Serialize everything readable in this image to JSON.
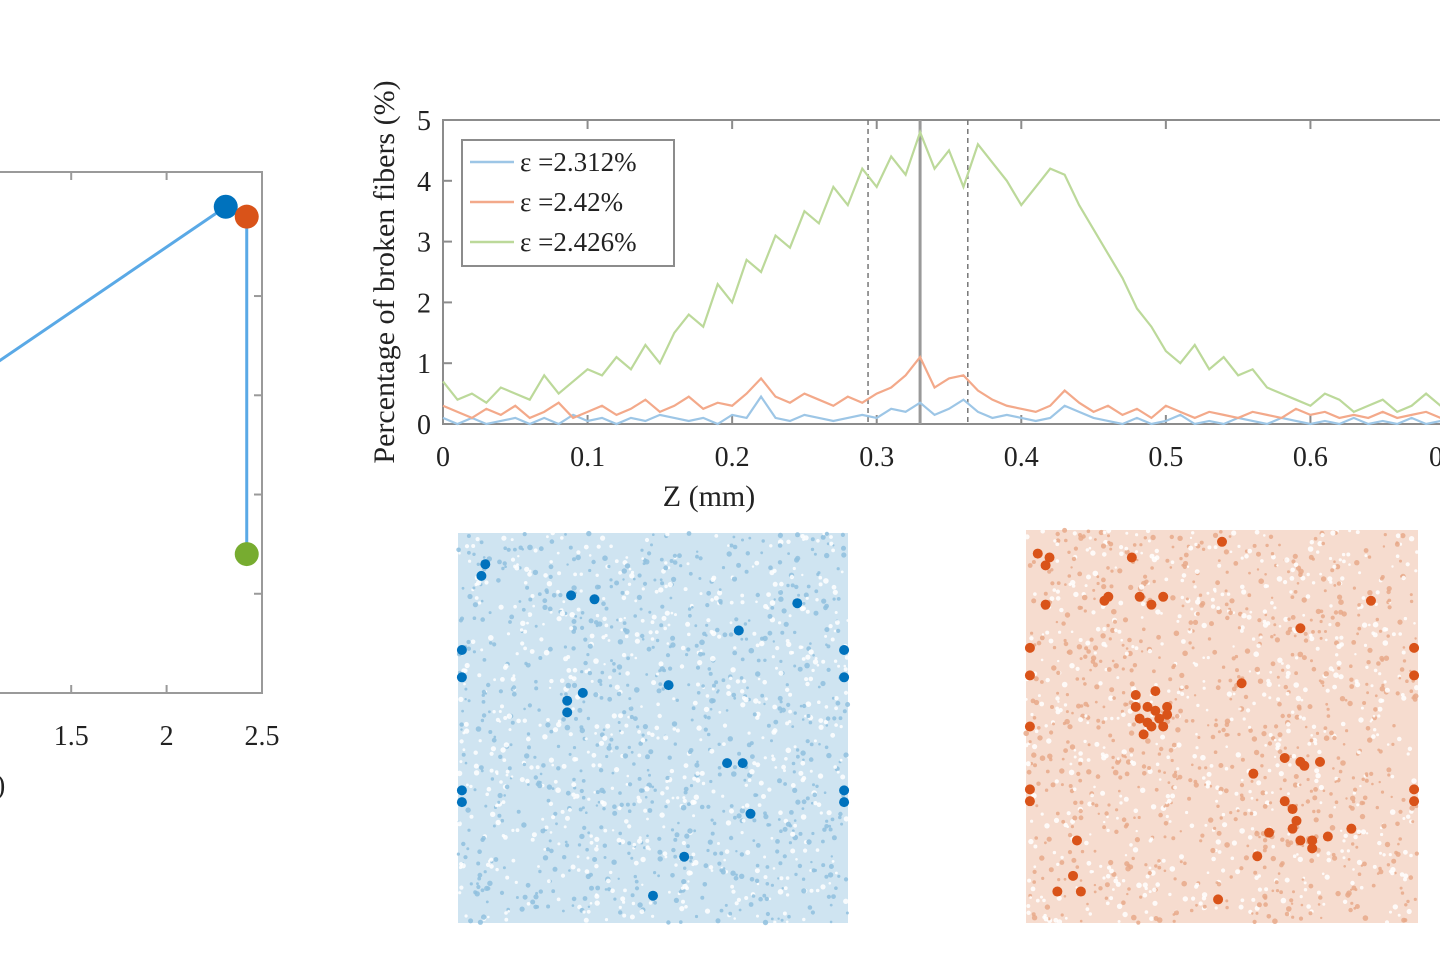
{
  "chart_data": [
    {
      "type": "line",
      "xlim": [
        0,
        2.5
      ],
      "x_ticks": [
        "1.5",
        "2",
        "2.5"
      ],
      "xlabel_fragment": ")",
      "series": [
        {
          "x": [
            1.05,
            2.31,
            2.42,
            2.42
          ],
          "y": [
            0.65,
            0.98,
            0.96,
            0.28
          ],
          "color": "#5aa9e6"
        }
      ],
      "markers": [
        {
          "x": 2.31,
          "y": 0.98,
          "color": "#0072BD"
        },
        {
          "x": 2.42,
          "y": 0.96,
          "color": "#D95319"
        },
        {
          "x": 2.42,
          "y": 0.28,
          "color": "#77AC30"
        }
      ],
      "ylim": [
        0,
        1.05
      ]
    },
    {
      "type": "line",
      "xlabel": "Z (mm)",
      "ylabel": "Percentage of broken fibers (%)",
      "xlim": [
        0,
        0.7
      ],
      "ylim": [
        0,
        5
      ],
      "x_ticks": [
        "0",
        "0.1",
        "0.2",
        "0.3",
        "0.4",
        "0.5",
        "0.6",
        "0"
      ],
      "y_ticks": [
        "0",
        "1",
        "2",
        "3",
        "4",
        "5"
      ],
      "legend_position": "top-left",
      "vlines": [
        {
          "x": 0.294,
          "style": "dashed"
        },
        {
          "x": 0.33,
          "style": "solid"
        },
        {
          "x": 0.363,
          "style": "dashed"
        }
      ],
      "series": [
        {
          "name": "ε =2.312%",
          "color": "#9dc6e6",
          "x": [
            0.0,
            0.01,
            0.02,
            0.03,
            0.04,
            0.05,
            0.06,
            0.07,
            0.08,
            0.09,
            0.1,
            0.11,
            0.12,
            0.13,
            0.14,
            0.15,
            0.16,
            0.17,
            0.18,
            0.19,
            0.2,
            0.21,
            0.22,
            0.23,
            0.24,
            0.25,
            0.26,
            0.27,
            0.28,
            0.29,
            0.3,
            0.31,
            0.32,
            0.33,
            0.34,
            0.35,
            0.36,
            0.37,
            0.38,
            0.39,
            0.4,
            0.41,
            0.42,
            0.43,
            0.44,
            0.45,
            0.46,
            0.47,
            0.48,
            0.49,
            0.5,
            0.51,
            0.52,
            0.53,
            0.54,
            0.55,
            0.56,
            0.57,
            0.58,
            0.59,
            0.6,
            0.61,
            0.62,
            0.63,
            0.64,
            0.65,
            0.66,
            0.67,
            0.68,
            0.69,
            0.7
          ],
          "y": [
            0.1,
            0.0,
            0.1,
            0.0,
            0.05,
            0.1,
            0.0,
            0.1,
            0.0,
            0.15,
            0.05,
            0.1,
            0.0,
            0.1,
            0.05,
            0.15,
            0.1,
            0.05,
            0.1,
            0.0,
            0.15,
            0.1,
            0.45,
            0.1,
            0.05,
            0.15,
            0.1,
            0.05,
            0.1,
            0.15,
            0.1,
            0.25,
            0.2,
            0.35,
            0.15,
            0.25,
            0.4,
            0.2,
            0.1,
            0.15,
            0.1,
            0.05,
            0.1,
            0.3,
            0.2,
            0.1,
            0.05,
            0.0,
            0.1,
            0.0,
            0.05,
            0.15,
            0.0,
            0.05,
            0.0,
            0.1,
            0.05,
            0.0,
            0.1,
            0.05,
            0.0,
            0.05,
            0.0,
            0.1,
            0.0,
            0.05,
            0.0,
            0.1,
            0.0,
            0.05,
            0.1
          ]
        },
        {
          "name": "ε =2.42%",
          "color": "#f3a98a",
          "x": [
            0.0,
            0.01,
            0.02,
            0.03,
            0.04,
            0.05,
            0.06,
            0.07,
            0.08,
            0.09,
            0.1,
            0.11,
            0.12,
            0.13,
            0.14,
            0.15,
            0.16,
            0.17,
            0.18,
            0.19,
            0.2,
            0.21,
            0.22,
            0.23,
            0.24,
            0.25,
            0.26,
            0.27,
            0.28,
            0.29,
            0.3,
            0.31,
            0.32,
            0.33,
            0.34,
            0.35,
            0.36,
            0.37,
            0.38,
            0.39,
            0.4,
            0.41,
            0.42,
            0.43,
            0.44,
            0.45,
            0.46,
            0.47,
            0.48,
            0.49,
            0.5,
            0.51,
            0.52,
            0.53,
            0.54,
            0.55,
            0.56,
            0.57,
            0.58,
            0.59,
            0.6,
            0.61,
            0.62,
            0.63,
            0.64,
            0.65,
            0.66,
            0.67,
            0.68,
            0.69,
            0.7
          ],
          "y": [
            0.3,
            0.2,
            0.1,
            0.25,
            0.15,
            0.3,
            0.1,
            0.2,
            0.35,
            0.1,
            0.2,
            0.3,
            0.15,
            0.25,
            0.4,
            0.2,
            0.3,
            0.45,
            0.25,
            0.35,
            0.3,
            0.5,
            0.75,
            0.45,
            0.35,
            0.5,
            0.4,
            0.3,
            0.45,
            0.35,
            0.5,
            0.6,
            0.8,
            1.1,
            0.6,
            0.75,
            0.8,
            0.55,
            0.4,
            0.3,
            0.25,
            0.2,
            0.3,
            0.55,
            0.35,
            0.2,
            0.3,
            0.15,
            0.25,
            0.1,
            0.3,
            0.2,
            0.1,
            0.2,
            0.15,
            0.1,
            0.2,
            0.15,
            0.1,
            0.25,
            0.15,
            0.2,
            0.1,
            0.15,
            0.1,
            0.2,
            0.1,
            0.15,
            0.2,
            0.1,
            0.3
          ]
        },
        {
          "name": "ε =2.426%",
          "color": "#bcd99a",
          "x": [
            0.0,
            0.01,
            0.02,
            0.03,
            0.04,
            0.05,
            0.06,
            0.07,
            0.08,
            0.09,
            0.1,
            0.11,
            0.12,
            0.13,
            0.14,
            0.15,
            0.16,
            0.17,
            0.18,
            0.19,
            0.2,
            0.21,
            0.22,
            0.23,
            0.24,
            0.25,
            0.26,
            0.27,
            0.28,
            0.29,
            0.3,
            0.31,
            0.32,
            0.33,
            0.34,
            0.35,
            0.36,
            0.37,
            0.38,
            0.39,
            0.4,
            0.41,
            0.42,
            0.43,
            0.44,
            0.45,
            0.46,
            0.47,
            0.48,
            0.49,
            0.5,
            0.51,
            0.52,
            0.53,
            0.54,
            0.55,
            0.56,
            0.57,
            0.58,
            0.59,
            0.6,
            0.61,
            0.62,
            0.63,
            0.64,
            0.65,
            0.66,
            0.67,
            0.68,
            0.69,
            0.7
          ],
          "y": [
            0.7,
            0.4,
            0.5,
            0.35,
            0.6,
            0.5,
            0.4,
            0.8,
            0.5,
            0.7,
            0.9,
            0.8,
            1.1,
            0.9,
            1.3,
            1.0,
            1.5,
            1.8,
            1.6,
            2.3,
            2.0,
            2.7,
            2.5,
            3.1,
            2.9,
            3.5,
            3.3,
            3.9,
            3.6,
            4.2,
            3.9,
            4.4,
            4.1,
            4.8,
            4.2,
            4.5,
            3.9,
            4.6,
            4.3,
            4.0,
            3.6,
            3.9,
            4.2,
            4.1,
            3.6,
            3.2,
            2.8,
            2.4,
            1.9,
            1.6,
            1.2,
            1.0,
            1.3,
            0.9,
            1.1,
            0.8,
            0.9,
            0.6,
            0.5,
            0.4,
            0.3,
            0.5,
            0.4,
            0.2,
            0.3,
            0.4,
            0.2,
            0.3,
            0.5,
            0.3,
            0.4
          ]
        }
      ]
    },
    {
      "type": "scatter",
      "panel": "cross-section",
      "color": "#0072BD",
      "xlim": [
        0,
        1
      ],
      "ylim": [
        0,
        1
      ],
      "points": [
        [
          0.07,
          0.08
        ],
        [
          0.06,
          0.11
        ],
        [
          0.29,
          0.16
        ],
        [
          0.35,
          0.17
        ],
        [
          0.87,
          0.18
        ],
        [
          0.72,
          0.25
        ],
        [
          0.01,
          0.3
        ],
        [
          0.99,
          0.3
        ],
        [
          0.01,
          0.37
        ],
        [
          0.99,
          0.37
        ],
        [
          0.54,
          0.39
        ],
        [
          0.32,
          0.41
        ],
        [
          0.28,
          0.43
        ],
        [
          0.28,
          0.46
        ],
        [
          0.69,
          0.59
        ],
        [
          0.73,
          0.59
        ],
        [
          0.01,
          0.66
        ],
        [
          0.99,
          0.66
        ],
        [
          0.01,
          0.69
        ],
        [
          0.99,
          0.69
        ],
        [
          0.75,
          0.72
        ],
        [
          0.58,
          0.83
        ],
        [
          0.5,
          0.93
        ]
      ]
    },
    {
      "type": "scatter",
      "panel": "cross-section",
      "color": "#D95319",
      "xlim": [
        0,
        1
      ],
      "ylim": [
        0,
        1
      ],
      "points": [
        [
          0.03,
          0.06
        ],
        [
          0.06,
          0.07
        ],
        [
          0.05,
          0.09
        ],
        [
          0.27,
          0.07
        ],
        [
          0.5,
          0.03
        ],
        [
          0.05,
          0.19
        ],
        [
          0.21,
          0.17
        ],
        [
          0.2,
          0.18
        ],
        [
          0.29,
          0.17
        ],
        [
          0.32,
          0.19
        ],
        [
          0.35,
          0.17
        ],
        [
          0.88,
          0.18
        ],
        [
          0.7,
          0.25
        ],
        [
          0.01,
          0.3
        ],
        [
          0.99,
          0.3
        ],
        [
          0.01,
          0.37
        ],
        [
          0.99,
          0.37
        ],
        [
          0.55,
          0.39
        ],
        [
          0.28,
          0.42
        ],
        [
          0.33,
          0.41
        ],
        [
          0.28,
          0.45
        ],
        [
          0.31,
          0.45
        ],
        [
          0.33,
          0.46
        ],
        [
          0.36,
          0.45
        ],
        [
          0.29,
          0.48
        ],
        [
          0.31,
          0.49
        ],
        [
          0.34,
          0.48
        ],
        [
          0.36,
          0.47
        ],
        [
          0.32,
          0.5
        ],
        [
          0.35,
          0.5
        ],
        [
          0.3,
          0.52
        ],
        [
          0.01,
          0.5
        ],
        [
          0.71,
          0.6
        ],
        [
          0.66,
          0.58
        ],
        [
          0.7,
          0.59
        ],
        [
          0.75,
          0.59
        ],
        [
          0.58,
          0.62
        ],
        [
          0.66,
          0.69
        ],
        [
          0.68,
          0.71
        ],
        [
          0.69,
          0.74
        ],
        [
          0.68,
          0.76
        ],
        [
          0.7,
          0.79
        ],
        [
          0.73,
          0.79
        ],
        [
          0.62,
          0.77
        ],
        [
          0.77,
          0.78
        ],
        [
          0.73,
          0.81
        ],
        [
          0.83,
          0.76
        ],
        [
          0.01,
          0.66
        ],
        [
          0.99,
          0.66
        ],
        [
          0.01,
          0.69
        ],
        [
          0.99,
          0.69
        ],
        [
          0.59,
          0.83
        ],
        [
          0.13,
          0.79
        ],
        [
          0.12,
          0.88
        ],
        [
          0.08,
          0.92
        ],
        [
          0.14,
          0.92
        ],
        [
          0.49,
          0.94
        ]
      ]
    }
  ]
}
